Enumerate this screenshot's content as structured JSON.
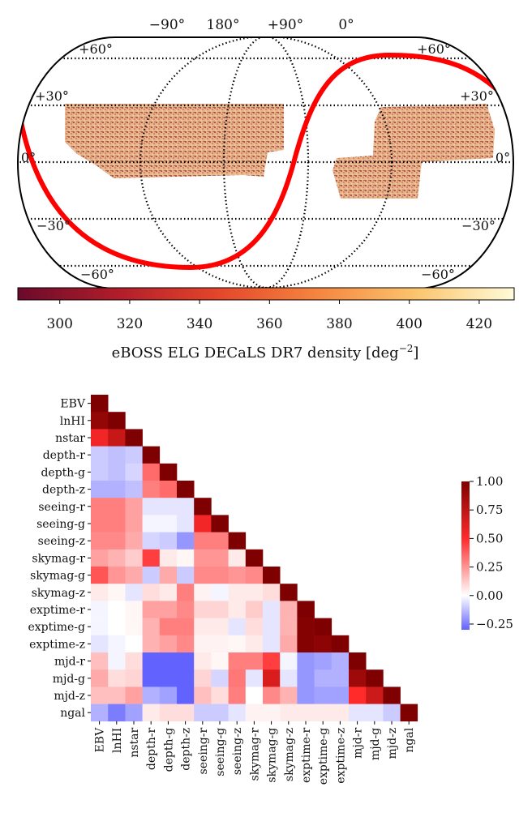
{
  "sky_map": {
    "type": "heatmap",
    "title": "eBOSS ELG DECaLS DR7 density",
    "title_units": "[deg",
    "title_exp": "−2",
    "title_close": "]",
    "longitude_labels": [
      "−90°",
      "180°",
      "+90°",
      "0°"
    ],
    "latitude_labels": {
      "left": [
        "+60°",
        "+30°",
        "0°",
        "−30°",
        "−60°"
      ],
      "right": [
        "+60°",
        "+30°",
        "0°",
        "−30°",
        "−60°"
      ]
    },
    "colorbar": {
      "range": [
        288,
        430
      ],
      "ticks": [
        300,
        320,
        340,
        360,
        380,
        400,
        420
      ],
      "tick_labels": [
        "300",
        "320",
        "340",
        "360",
        "380",
        "400",
        "420"
      ],
      "colormap": "YlOrRd_r (afmhot-like)"
    },
    "footprint_color": "#c8885c",
    "galactic_plane_color": "#ff0000"
  },
  "chart_data": {
    "type": "heatmap",
    "title": "",
    "variables": [
      "EBV",
      "lnHI",
      "nstar",
      "depth-r",
      "depth-g",
      "depth-z",
      "seeing-r",
      "seeing-g",
      "seeing-z",
      "skymag-r",
      "skymag-g",
      "skymag-z",
      "exptime-r",
      "exptime-g",
      "exptime-z",
      "mjd-r",
      "mjd-g",
      "mjd-z",
      "ngal"
    ],
    "matrix": [
      [
        1.0
      ],
      [
        0.92,
        1.0
      ],
      [
        0.55,
        0.72,
        1.0
      ],
      [
        -0.1,
        -0.12,
        -0.1,
        1.0
      ],
      [
        -0.1,
        -0.12,
        -0.08,
        0.35,
        1.0
      ],
      [
        -0.15,
        -0.15,
        -0.12,
        0.3,
        0.35,
        1.0
      ],
      [
        0.3,
        0.3,
        0.22,
        -0.05,
        -0.05,
        -0.05,
        1.0
      ],
      [
        0.3,
        0.3,
        0.22,
        -0.02,
        -0.02,
        -0.05,
        0.55,
        1.0
      ],
      [
        0.28,
        0.28,
        0.2,
        -0.08,
        -0.1,
        -0.2,
        0.3,
        0.3,
        1.0
      ],
      [
        0.22,
        0.18,
        0.12,
        0.45,
        0.05,
        0.02,
        0.25,
        0.25,
        0.05,
        1.0
      ],
      [
        0.4,
        0.25,
        0.2,
        -0.1,
        0.2,
        -0.1,
        0.28,
        0.28,
        0.25,
        0.28,
        1.0
      ],
      [
        0.05,
        0.02,
        -0.05,
        0.08,
        0.05,
        0.3,
        0.03,
        -0.02,
        0.05,
        0.05,
        0.08,
        1.0
      ],
      [
        -0.02,
        0.0,
        0.02,
        0.22,
        0.22,
        0.28,
        0.1,
        0.1,
        0.05,
        0.12,
        -0.05,
        0.18,
        1.0
      ],
      [
        -0.02,
        0.0,
        0.02,
        0.18,
        0.3,
        0.3,
        0.05,
        0.05,
        -0.05,
        0.08,
        -0.05,
        0.18,
        0.98,
        1.0
      ],
      [
        -0.05,
        -0.02,
        0.0,
        0.18,
        0.22,
        0.28,
        0.03,
        0.03,
        0.02,
        0.05,
        -0.05,
        0.2,
        0.98,
        0.95,
        1.0
      ],
      [
        0.15,
        -0.02,
        0.08,
        -0.4,
        -0.3,
        -0.3,
        0.05,
        0.02,
        0.3,
        0.3,
        0.45,
        -0.02,
        -0.2,
        -0.18,
        -0.15,
        1.0
      ],
      [
        0.2,
        0.08,
        0.1,
        -0.3,
        -0.3,
        -0.3,
        0.1,
        -0.08,
        0.32,
        -0.05,
        0.65,
        -0.05,
        -0.2,
        -0.15,
        -0.15,
        0.88,
        1.0
      ],
      [
        0.15,
        0.15,
        0.22,
        -0.15,
        -0.18,
        -0.38,
        0.15,
        0.08,
        0.3,
        0.0,
        0.28,
        0.18,
        -0.2,
        -0.18,
        -0.18,
        0.5,
        0.7,
        1.0
      ],
      [
        -0.15,
        -0.25,
        -0.18,
        0.05,
        0.08,
        0.08,
        -0.1,
        -0.1,
        -0.05,
        0.03,
        0.03,
        0.05,
        0.05,
        0.05,
        0.05,
        -0.05,
        -0.05,
        -0.1,
        1.0
      ]
    ],
    "vmin": -0.3,
    "vmax": 1.0,
    "colorbar_ticks": [
      1.0,
      0.75,
      0.5,
      0.25,
      0.0,
      -0.25
    ],
    "colorbar_tick_labels": [
      "1.00",
      "0.75",
      "0.50",
      "0.25",
      "0.00",
      "−0.25"
    ],
    "colormap": "bwr"
  }
}
